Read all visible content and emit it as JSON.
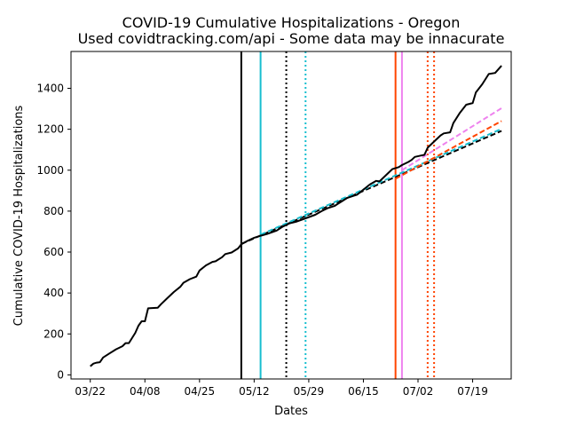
{
  "chart_data": {
    "type": "line",
    "title": "COVID-19 Cumulative Hospitalizations - Oregon",
    "subtitle": "Used covidtracking.com/api - Some data may be innacurate",
    "xlabel": "Dates",
    "ylabel": "Cumulative COVID-19 Hospitalizations",
    "xlim": [
      "2020-03-16",
      "2020-07-31"
    ],
    "ylim": [
      -20,
      1580
    ],
    "x_ticks": [
      {
        "date": "2020-03-22",
        "label": "03/22"
      },
      {
        "date": "2020-04-08",
        "label": "04/08"
      },
      {
        "date": "2020-04-25",
        "label": "04/25"
      },
      {
        "date": "2020-05-12",
        "label": "05/12"
      },
      {
        "date": "2020-05-29",
        "label": "05/29"
      },
      {
        "date": "2020-06-15",
        "label": "06/15"
      },
      {
        "date": "2020-07-02",
        "label": "07/02"
      },
      {
        "date": "2020-07-19",
        "label": "07/19"
      }
    ],
    "y_ticks": [
      0,
      200,
      400,
      600,
      800,
      1000,
      1200,
      1400
    ],
    "grid": false,
    "series": [
      {
        "kind": "actual",
        "color": "#000000",
        "style": "solid",
        "points": [
          [
            "2020-03-22",
            42
          ],
          [
            "2020-03-23",
            55
          ],
          [
            "2020-03-24",
            60
          ],
          [
            "2020-03-25",
            62
          ],
          [
            "2020-03-26",
            85
          ],
          [
            "2020-03-28",
            105
          ],
          [
            "2020-03-30",
            125
          ],
          [
            "2020-04-01",
            140
          ],
          [
            "2020-04-02",
            155
          ],
          [
            "2020-04-03",
            155
          ],
          [
            "2020-04-04",
            180
          ],
          [
            "2020-04-05",
            205
          ],
          [
            "2020-04-06",
            240
          ],
          [
            "2020-04-07",
            262
          ],
          [
            "2020-04-08",
            262
          ],
          [
            "2020-04-09",
            325
          ],
          [
            "2020-04-12",
            328
          ],
          [
            "2020-04-13",
            345
          ],
          [
            "2020-04-15",
            375
          ],
          [
            "2020-04-17",
            405
          ],
          [
            "2020-04-19",
            430
          ],
          [
            "2020-04-20",
            450
          ],
          [
            "2020-04-22",
            468
          ],
          [
            "2020-04-24",
            480
          ],
          [
            "2020-04-25",
            510
          ],
          [
            "2020-04-27",
            535
          ],
          [
            "2020-04-29",
            552
          ],
          [
            "2020-04-30",
            555
          ],
          [
            "2020-05-02",
            575
          ],
          [
            "2020-05-03",
            590
          ],
          [
            "2020-05-05",
            598
          ],
          [
            "2020-05-07",
            618
          ],
          [
            "2020-05-08",
            638
          ],
          [
            "2020-05-10",
            655
          ],
          [
            "2020-05-12",
            670
          ],
          [
            "2020-05-14",
            680
          ],
          [
            "2020-05-16",
            688
          ],
          [
            "2020-05-19",
            705
          ],
          [
            "2020-05-21",
            725
          ],
          [
            "2020-05-23",
            740
          ],
          [
            "2020-05-25",
            748
          ],
          [
            "2020-05-28",
            765
          ],
          [
            "2020-05-31",
            782
          ],
          [
            "2020-06-02",
            800
          ],
          [
            "2020-06-04",
            815
          ],
          [
            "2020-06-06",
            825
          ],
          [
            "2020-06-08",
            845
          ],
          [
            "2020-06-10",
            865
          ],
          [
            "2020-06-12",
            875
          ],
          [
            "2020-06-13",
            880
          ],
          [
            "2020-06-15",
            905
          ],
          [
            "2020-06-17",
            930
          ],
          [
            "2020-06-19",
            948
          ],
          [
            "2020-06-20",
            945
          ],
          [
            "2020-06-22",
            975
          ],
          [
            "2020-06-24",
            1005
          ],
          [
            "2020-06-26",
            1015
          ],
          [
            "2020-06-27",
            1025
          ],
          [
            "2020-06-29",
            1040
          ],
          [
            "2020-06-30",
            1050
          ],
          [
            "2020-07-01",
            1065
          ],
          [
            "2020-07-03",
            1072
          ],
          [
            "2020-07-04",
            1075
          ],
          [
            "2020-07-05",
            1110
          ],
          [
            "2020-07-07",
            1140
          ],
          [
            "2020-07-09",
            1170
          ],
          [
            "2020-07-10",
            1180
          ],
          [
            "2020-07-12",
            1185
          ],
          [
            "2020-07-13",
            1230
          ],
          [
            "2020-07-15",
            1280
          ],
          [
            "2020-07-17",
            1320
          ],
          [
            "2020-07-19",
            1328
          ],
          [
            "2020-07-20",
            1380
          ],
          [
            "2020-07-22",
            1420
          ],
          [
            "2020-07-24",
            1470
          ],
          [
            "2020-07-26",
            1475
          ],
          [
            "2020-07-28",
            1510
          ]
        ]
      },
      {
        "kind": "projection",
        "color": "#000000",
        "style": "dashed",
        "points": [
          [
            "2020-05-08",
            640
          ],
          [
            "2020-07-28",
            1192
          ]
        ]
      },
      {
        "kind": "projection",
        "color": "#17becf",
        "style": "dashed",
        "points": [
          [
            "2020-05-14",
            685
          ],
          [
            "2020-07-28",
            1202
          ]
        ]
      },
      {
        "kind": "projection",
        "color": "#ff4500",
        "style": "dashed",
        "points": [
          [
            "2020-06-25",
            958
          ],
          [
            "2020-07-28",
            1240
          ]
        ]
      },
      {
        "kind": "projection",
        "color": "#ee82ee",
        "style": "dashed",
        "points": [
          [
            "2020-06-27",
            1000
          ],
          [
            "2020-07-28",
            1303
          ]
        ]
      }
    ],
    "vertical_lines": [
      {
        "date": "2020-05-08",
        "color": "#000000",
        "style": "solid"
      },
      {
        "date": "2020-05-14",
        "color": "#17becf",
        "style": "solid"
      },
      {
        "date": "2020-05-22",
        "color": "#000000",
        "style": "dotted"
      },
      {
        "date": "2020-05-28",
        "color": "#17becf",
        "style": "dotted"
      },
      {
        "date": "2020-06-25",
        "color": "#ff4500",
        "style": "solid"
      },
      {
        "date": "2020-06-27",
        "color": "#ee82ee",
        "style": "solid"
      },
      {
        "date": "2020-07-05",
        "color": "#ff4500",
        "style": "dotted"
      },
      {
        "date": "2020-07-07",
        "color": "#ff4500",
        "style": "dotted"
      }
    ]
  }
}
